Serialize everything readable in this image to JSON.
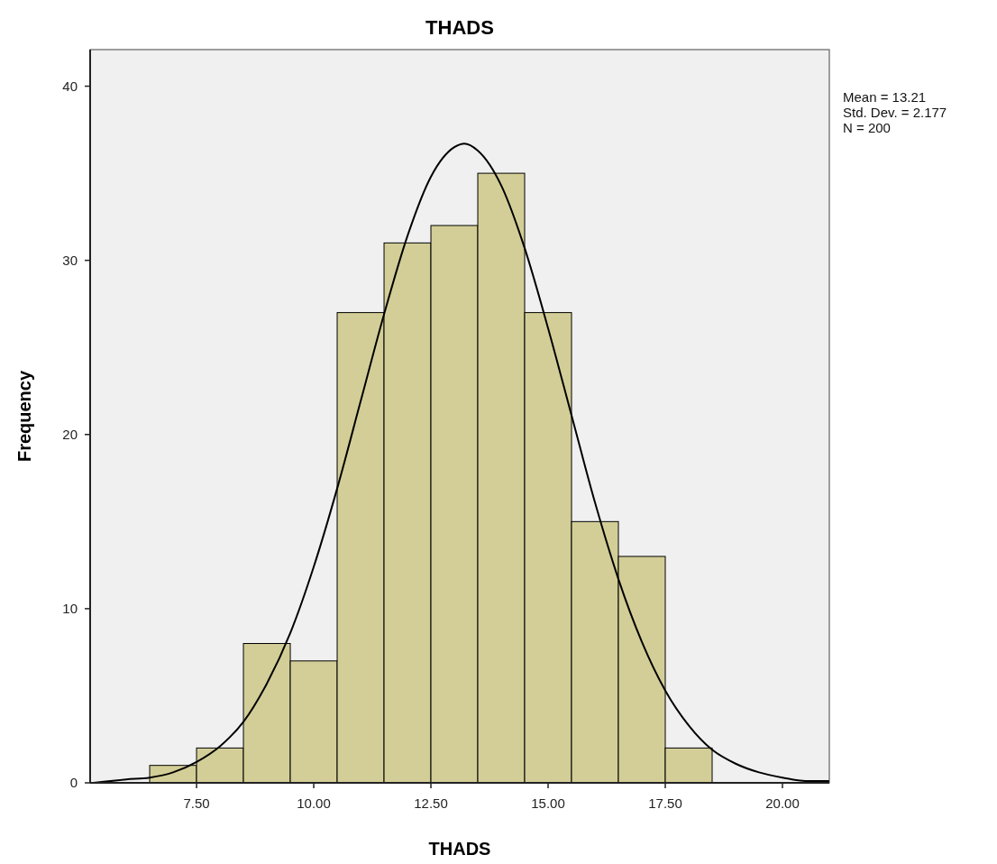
{
  "chart_data": {
    "type": "histogram",
    "title": "THADS",
    "xlabel": "THADS",
    "ylabel": "Frequency",
    "annotations": [
      "Mean = 13.21",
      "Std. Dev. = 2.177",
      "N = 200"
    ],
    "xlim": [
      5.23,
      21.0
    ],
    "xticks": [
      {
        "value": 7.5,
        "label": "7.50"
      },
      {
        "value": 10,
        "label": "10.00"
      },
      {
        "value": 12.5,
        "label": "12.50"
      },
      {
        "value": 15,
        "label": "15.00"
      },
      {
        "value": 17.5,
        "label": "17.50"
      },
      {
        "value": 20,
        "label": "20.00"
      }
    ],
    "ylim": [
      0,
      42.1
    ],
    "yticks": [
      0,
      10,
      20,
      30,
      40
    ],
    "grid": false,
    "series": [
      {
        "color": "#d3ce97",
        "bins": [
          6.5,
          7.5,
          8.5,
          9.5,
          10.5,
          11.5,
          12.5,
          13.5,
          14.5,
          15.5,
          16.5,
          17.5,
          18.5
        ],
        "values": [
          1,
          2,
          8,
          7,
          27,
          31,
          32,
          35,
          27,
          15,
          13,
          2
        ]
      },
      {
        "type": "line",
        "color": "#000000",
        "x": [
          5.3,
          6,
          6.5,
          7,
          7.5,
          8,
          8.5,
          9,
          9.5,
          10,
          10.5,
          11,
          11.5,
          12,
          12.5,
          13,
          13.21,
          13.5,
          14,
          14.5,
          15,
          15.5,
          16,
          16.5,
          17,
          17.5,
          18,
          18.5,
          19,
          19.5,
          20,
          20.5,
          21
        ],
        "values": [
          0.0,
          0.2,
          0.3,
          0.6,
          1.2,
          2.1,
          3.5,
          5.7,
          8.6,
          12.4,
          16.9,
          21.9,
          26.9,
          31.4,
          34.8,
          36.5,
          36.7,
          36.3,
          34.3,
          30.7,
          26.1,
          21.1,
          16.1,
          11.7,
          8.1,
          5.3,
          3.3,
          1.9,
          1.1,
          0.6,
          0.3,
          0.1,
          0.1
        ]
      }
    ]
  }
}
